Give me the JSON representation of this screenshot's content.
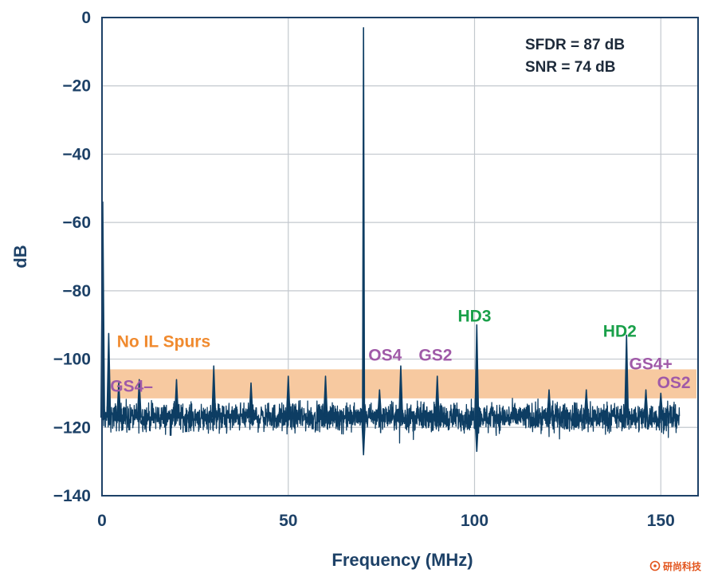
{
  "chart_data": {
    "type": "line",
    "xlabel": "Frequency (MHz)",
    "ylabel": "dB",
    "xlim": [
      0,
      160
    ],
    "ylim": [
      -140,
      0
    ],
    "x_ticks": [
      0,
      50,
      100,
      150
    ],
    "y_ticks": [
      0,
      -20,
      -40,
      -60,
      -80,
      -100,
      -120,
      -140
    ],
    "grid": true,
    "stats": [
      "SFDR = 87 dB",
      "SNR = 74 dB"
    ],
    "noise_floor": {
      "x_range": [
        0,
        155
      ],
      "center_db": -117,
      "spread_db": 4.5
    },
    "series": [
      {
        "peaks": [
          {
            "x": 0.2,
            "y": -54
          },
          {
            "x": 1.8,
            "y": -92.5
          },
          {
            "x": 4.5,
            "y": -107
          },
          {
            "x": 10,
            "y": -106
          },
          {
            "x": 20,
            "y": -106
          },
          {
            "x": 30,
            "y": -102
          },
          {
            "x": 40,
            "y": -107
          },
          {
            "x": 50,
            "y": -105
          },
          {
            "x": 60,
            "y": -105
          },
          {
            "x": 70.2,
            "y": -3
          },
          {
            "x": 70.2,
            "y": -128,
            "dip": true
          },
          {
            "x": 74.5,
            "y": -109
          },
          {
            "x": 80.2,
            "y": -102
          },
          {
            "x": 90,
            "y": -105
          },
          {
            "x": 100.6,
            "y": -90
          },
          {
            "x": 100.6,
            "y": -127,
            "dip": true
          },
          {
            "x": 120,
            "y": -109
          },
          {
            "x": 130,
            "y": -109
          },
          {
            "x": 140.8,
            "y": -93
          },
          {
            "x": 146,
            "y": -109
          },
          {
            "x": 150,
            "y": -110
          }
        ],
        "color": "#0d3d63"
      }
    ],
    "band": {
      "y_range": [
        -111.5,
        -103
      ],
      "color": "#f7c9a0"
    },
    "annotations": [
      {
        "text": "No IL Spurs",
        "x": 4,
        "y": -96.5,
        "color": "orange"
      },
      {
        "text": "GS4–",
        "x": 2.2,
        "y": -109.5,
        "color": "purple"
      },
      {
        "text": "OS4",
        "x": 71.5,
        "y": -100.5,
        "color": "purple"
      },
      {
        "text": "GS2",
        "x": 85,
        "y": -100.5,
        "color": "purple"
      },
      {
        "text": "HD3",
        "x": 95.5,
        "y": -89,
        "color": "green"
      },
      {
        "text": "HD2",
        "x": 134.5,
        "y": -93.5,
        "color": "green"
      },
      {
        "text": "GS4+",
        "x": 141.5,
        "y": -103,
        "color": "purple"
      },
      {
        "text": "OS2",
        "x": 149,
        "y": -108.5,
        "color": "purple"
      }
    ]
  },
  "watermark": {
    "text": "研尚科技"
  }
}
